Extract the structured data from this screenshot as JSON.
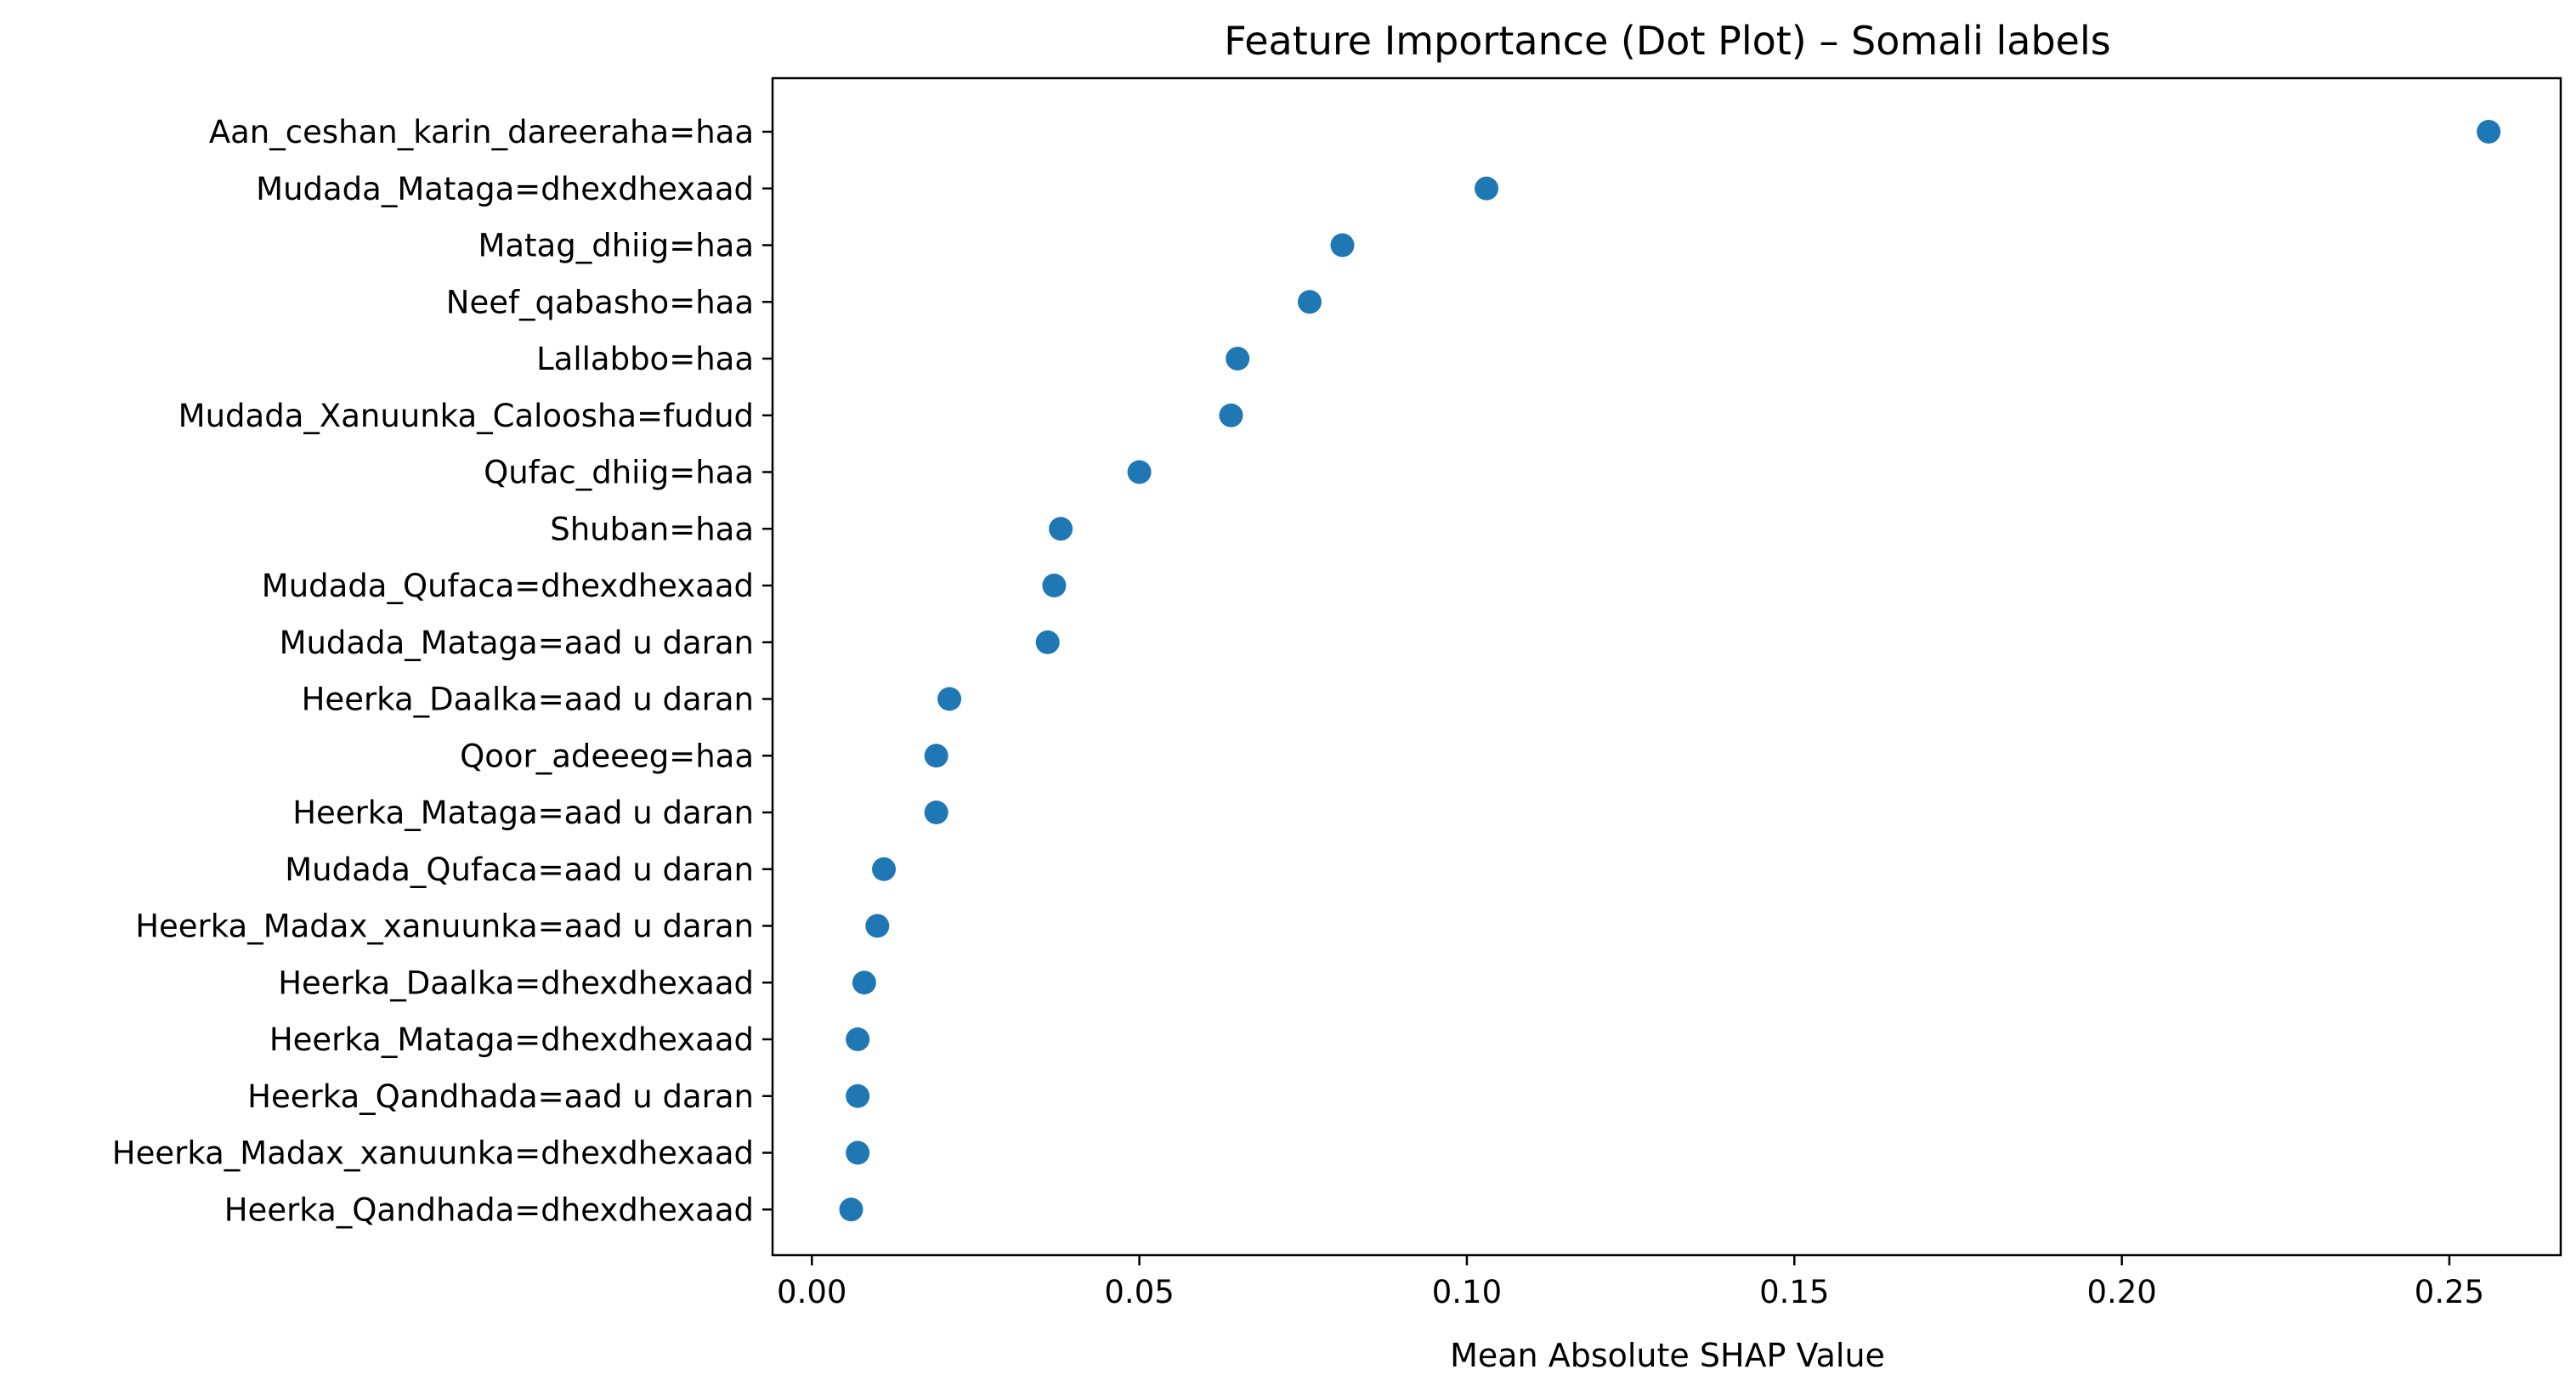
{
  "chart_data": {
    "type": "scatter",
    "title": "Feature Importance (Dot Plot) – Somali labels",
    "xlabel": "Mean Absolute SHAP Value",
    "ylabel": "",
    "xlim": [
      -0.006,
      0.267
    ],
    "x_ticks": [
      0.0,
      0.05,
      0.1,
      0.15,
      0.2,
      0.25
    ],
    "x_tick_labels": [
      "0.00",
      "0.05",
      "0.10",
      "0.15",
      "0.20",
      "0.25"
    ],
    "grid": false,
    "legend": "none",
    "color": "#1f77b4",
    "categories": [
      "Aan_ceshan_karin_dareeraha=haa",
      "Mudada_Mataga=dhexdhexaad",
      "Matag_dhiig=haa",
      "Neef_qabasho=haa",
      "Lallabbo=haa",
      "Mudada_Xanuunka_Caloosha=fudud",
      "Qufac_dhiig=haa",
      "Shuban=haa",
      "Mudada_Qufaca=dhexdhexaad",
      "Mudada_Mataga=aad u daran",
      "Heerka_Daalka=aad u daran",
      "Qoor_adeeeg=haa",
      "Heerka_Mataga=aad u daran",
      "Mudada_Qufaca=aad u daran",
      "Heerka_Madax_xanuunka=aad u daran",
      "Heerka_Daalka=dhexdhexaad",
      "Heerka_Mataga=dhexdhexaad",
      "Heerka_Qandhada=aad u daran",
      "Heerka_Madax_xanuunka=dhexdhexaad",
      "Heerka_Qandhada=dhexdhexaad"
    ],
    "values": [
      0.256,
      0.103,
      0.081,
      0.076,
      0.065,
      0.064,
      0.05,
      0.038,
      0.037,
      0.036,
      0.021,
      0.019,
      0.019,
      0.011,
      0.01,
      0.008,
      0.007,
      0.007,
      0.007,
      0.006
    ]
  }
}
